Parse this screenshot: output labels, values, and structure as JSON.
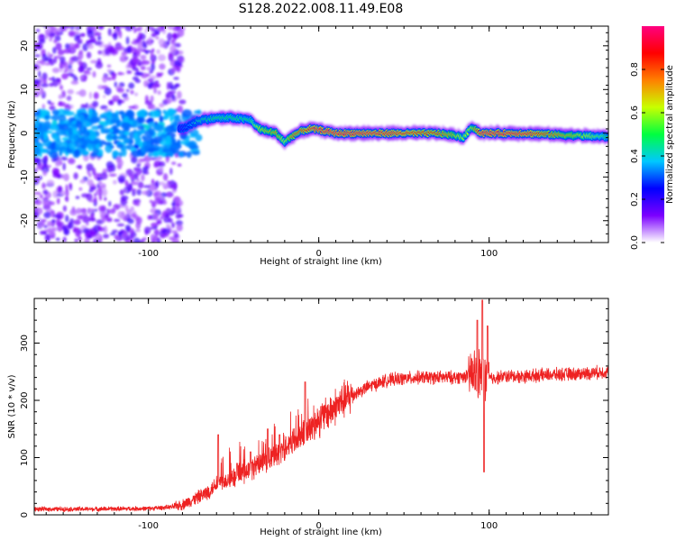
{
  "figure": {
    "title": "S128.2022.008.11.49.E08"
  },
  "colorbar": {
    "label": "Normalized spectral amplitude",
    "ticks": [
      "0.0",
      "0.2",
      "0.4",
      "0.6",
      "0.8"
    ],
    "tick_values": [
      0.0,
      0.2,
      0.4,
      0.6,
      0.8
    ],
    "range": [
      0,
      1
    ],
    "colormap": [
      "#ffffff",
      "#7b00ff",
      "#0000ff",
      "#00c8ff",
      "#00ff40",
      "#c8ff00",
      "#ff8000",
      "#ff0000",
      "#ff0080"
    ]
  },
  "chart_data": [
    {
      "type": "heatmap",
      "xlabel": "Height of straight line (km)",
      "ylabel": "Frequency (Hz)",
      "xlim": [
        -167,
        170
      ],
      "ylim": [
        -25,
        24.5
      ],
      "xticks": [
        -100,
        0,
        100
      ],
      "xtick_labels": [
        "-100",
        "0",
        "100"
      ],
      "yticks": [
        -20,
        -10,
        0,
        10,
        20
      ],
      "ytick_labels": [
        "-20",
        "-10",
        "0",
        "10",
        "20"
      ],
      "ridge": {
        "x": [
          -80,
          -70,
          -60,
          -50,
          -40,
          -35,
          -30,
          -25,
          -20,
          -15,
          -10,
          -5,
          0,
          10,
          30,
          50,
          70,
          80,
          85,
          90,
          95,
          100,
          120,
          150,
          170
        ],
        "y": [
          1,
          3,
          3.5,
          3.5,
          3,
          1,
          0.5,
          0,
          -2,
          -0.5,
          0.5,
          1,
          0.8,
          0,
          0,
          0,
          0,
          -0.5,
          -1,
          1.5,
          0,
          0,
          0,
          -0.5,
          -0.8
        ],
        "amplitude": [
          0.3,
          0.45,
          0.5,
          0.5,
          0.5,
          0.65,
          0.7,
          0.75,
          0.6,
          0.8,
          0.85,
          0.9,
          0.95,
          0.95,
          0.95,
          0.9,
          0.85,
          0.7,
          0.6,
          0.65,
          0.95,
          0.95,
          0.95,
          0.7,
          0.5
        ]
      },
      "noise_region": {
        "x_from": -167,
        "x_to": -80,
        "amplitude_range": [
          0.05,
          0.2
        ]
      }
    },
    {
      "type": "line",
      "xlabel": "Height of straight line (km)",
      "ylabel": "SNR (10 * v/v)",
      "xlim": [
        -167,
        170
      ],
      "ylim": [
        0,
        378
      ],
      "xticks": [
        -100,
        0,
        100
      ],
      "xtick_labels": [
        "-100",
        "0",
        "100"
      ],
      "yticks": [
        0,
        100,
        200,
        300
      ],
      "ytick_labels": [
        "0",
        "100",
        "200",
        "300"
      ],
      "series": [
        {
          "color": "#ee2222",
          "x": [
            -167,
            -140,
            -100,
            -85,
            -80,
            -75,
            -70,
            -65,
            -60,
            -55,
            -50,
            -45,
            -40,
            -35,
            -30,
            -25,
            -20,
            -15,
            -10,
            -5,
            0,
            10,
            20,
            30,
            40,
            50,
            60,
            70,
            80,
            85,
            90,
            95,
            98,
            100,
            105,
            110,
            120,
            130,
            140,
            150,
            160,
            170
          ],
          "y": [
            10,
            10,
            11,
            14,
            18,
            25,
            32,
            40,
            55,
            60,
            65,
            72,
            80,
            90,
            95,
            105,
            120,
            130,
            140,
            150,
            165,
            190,
            210,
            225,
            235,
            238,
            240,
            240,
            240,
            242,
            245,
            245,
            245,
            238,
            240,
            242,
            242,
            244,
            245,
            246,
            248,
            250
          ],
          "spikes": [
            {
              "x": -59,
              "y": 140
            },
            {
              "x": -48,
              "y": 90
            },
            {
              "x": -40,
              "y": 110
            },
            {
              "x": -30,
              "y": 150
            },
            {
              "x": -23,
              "y": 140
            },
            {
              "x": -8,
              "y": 232
            },
            {
              "x": 93,
              "y": 340
            },
            {
              "x": 96,
              "y": 375
            },
            {
              "x": 97,
              "y": 75
            },
            {
              "x": 99,
              "y": 330
            }
          ]
        }
      ]
    }
  ]
}
